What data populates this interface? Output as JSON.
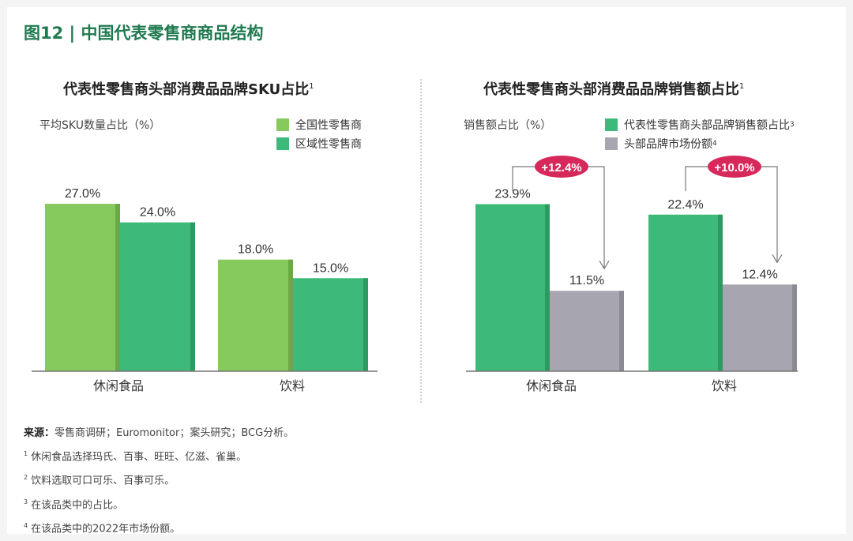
{
  "figure_title": "图12 | 中国代表零售商商品结构",
  "notes": {
    "source_label": "来源：",
    "source_text": "零售商调研；Euromonitor；案头研究；BCG分析。",
    "items": [
      {
        "marker": "1",
        "text": "休闲食品选择玛氏、百事、旺旺、亿滋、雀巢。"
      },
      {
        "marker": "2",
        "text": "饮料选取可口可乐、百事可乐。"
      },
      {
        "marker": "3",
        "text": "在该品类中的占比。"
      },
      {
        "marker": "4",
        "text": "在该品类中的2022年市场份额。"
      }
    ]
  },
  "chart_data": [
    {
      "type": "bar",
      "title": "代表性零售商头部消费品品牌SKU占比",
      "title_sup": "1",
      "ylabel": "平均SKU数量占比（%）",
      "ylim": [
        0,
        30
      ],
      "categories": [
        "休闲食品",
        "饮料"
      ],
      "value_labels": [
        [
          "27.0%",
          "18.0%"
        ],
        [
          "24.0%",
          "15.0%"
        ]
      ],
      "series": [
        {
          "name": "全国性零售商",
          "values": [
            27.0,
            18.0
          ],
          "color": "#86c95c",
          "side": "#6aa84a"
        },
        {
          "name": "区域性零售商",
          "values": [
            24.0,
            15.0
          ],
          "color": "#3dba7a",
          "side": "#2e9a62"
        }
      ],
      "legend": "top-right"
    },
    {
      "type": "bar",
      "title": "代表性零售商头部消费品品牌销售额占比",
      "title_sup": "1",
      "ylabel": "销售额占比（%）",
      "ylim": [
        0,
        30
      ],
      "categories": [
        "休闲食品",
        "饮料"
      ],
      "value_labels": [
        [
          "23.9%",
          "22.4%"
        ],
        [
          "11.5%",
          "12.4%"
        ]
      ],
      "series": [
        {
          "name": "代表性零售商头部品牌销售额占比",
          "name_sup": "3",
          "values": [
            23.9,
            22.4
          ],
          "color": "#3dba7a",
          "side": "#2e9a62"
        },
        {
          "name": "头部品牌市场份额",
          "name_sup": "4",
          "values": [
            11.5,
            12.4
          ],
          "color": "#a7a6b0",
          "side": "#8c8b95"
        }
      ],
      "annotations": [
        "+12.4%",
        "+10.0%"
      ],
      "annotation_color": "#d6285a",
      "legend": "top-right"
    }
  ]
}
